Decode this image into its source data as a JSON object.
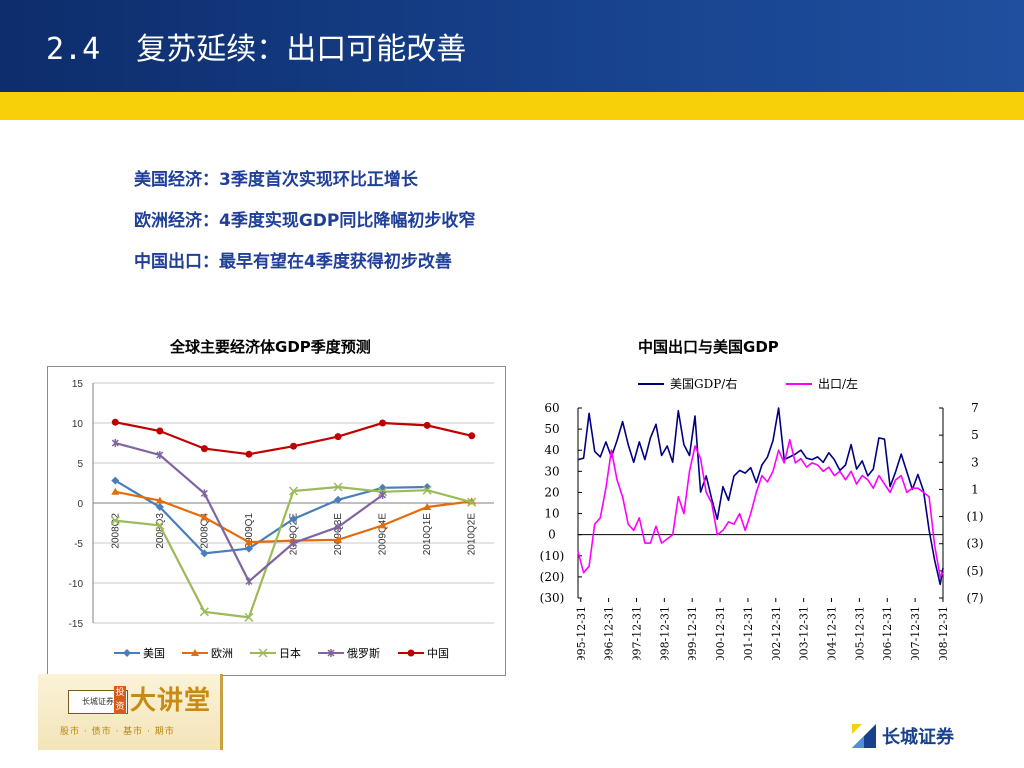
{
  "header": {
    "title": "2.4  复苏延续：出口可能改善"
  },
  "bullets": [
    "美国经济：3季度首次实现环比正增长",
    "欧洲经济：4季度实现GDP同比降幅初步收窄",
    "中国出口：最早有望在4季度获得初步改善"
  ],
  "footer": {
    "logo_mark": "长城证券",
    "logo_tag": "投资",
    "logo_big": "大讲堂",
    "logo_sub": "股市 · 债市 · 基市 · 期市",
    "brand_name": "长城证券"
  },
  "colors": {
    "header_dark": "#0d2d6b",
    "header_light": "#1f4f9e",
    "accent_yellow": "#f7d00a",
    "bullet_text": "#1f3f99"
  },
  "chart_data": [
    {
      "type": "line",
      "title": "全球主要经济体GDP季度预测",
      "categories": [
        "2008Q2",
        "2008Q3",
        "2008Q4",
        "2009Q1",
        "2009Q2E",
        "2009Q3E",
        "2009Q4E",
        "2010Q1E",
        "2010Q2E"
      ],
      "ylim": [
        -15,
        15
      ],
      "yticks": [
        15,
        10,
        5,
        0,
        -5,
        -10,
        -15
      ],
      "grid": true,
      "legend": "bottom",
      "series": [
        {
          "name": "美国",
          "color": "#4a7ebb",
          "marker": "diamond",
          "values": [
            2.8,
            -0.5,
            -6.3,
            -5.7,
            -2.0,
            0.4,
            1.9,
            2.0,
            null
          ]
        },
        {
          "name": "欧洲",
          "color": "#e46c0a",
          "marker": "triangle",
          "values": [
            1.4,
            0.3,
            -1.8,
            -4.9,
            -4.7,
            -4.6,
            -2.8,
            -0.5,
            0.2
          ]
        },
        {
          "name": "日本",
          "color": "#9bbb59",
          "marker": "cross",
          "values": [
            -2.2,
            -2.8,
            -13.6,
            -14.3,
            1.5,
            2.0,
            1.4,
            1.6,
            0.1
          ]
        },
        {
          "name": "俄罗斯",
          "color": "#8064a2",
          "marker": "x",
          "values": [
            7.5,
            6.0,
            1.2,
            -9.8,
            -5.0,
            -3.0,
            1.0,
            null,
            null
          ]
        },
        {
          "name": "中国",
          "color": "#c00000",
          "marker": "circle",
          "values": [
            10.1,
            9.0,
            6.8,
            6.1,
            7.1,
            8.3,
            10.0,
            9.7,
            8.4
          ]
        }
      ]
    },
    {
      "type": "line",
      "title": "中国出口与美国GDP",
      "x_labels": [
        "1995-12-31",
        "1996-12-31",
        "1997-12-31",
        "1998-12-31",
        "1999-12-31",
        "2000-12-31",
        "2001-12-31",
        "2002-12-31",
        "2003-12-31",
        "2004-12-31",
        "2005-12-31",
        "2006-12-31",
        "2007-12-31",
        "2008-12-31"
      ],
      "ylim_left": [
        -30,
        60
      ],
      "yticks_left": [
        "60",
        "50",
        "40",
        "30",
        "20",
        "10",
        "0",
        "(10)",
        "(20)",
        "(30)"
      ],
      "ylim_right": [
        -7,
        7
      ],
      "yticks_right": [
        "7",
        "5",
        "3",
        "1",
        "(1)",
        "(3)",
        "(5)",
        "(7)"
      ],
      "legend": "top",
      "series": [
        {
          "name": "美国GDP/右",
          "color": "#000080",
          "axis": "right",
          "x": [
            1995.9,
            1996.1,
            1996.3,
            1996.5,
            1996.7,
            1996.9,
            1997.1,
            1997.3,
            1997.5,
            1997.7,
            1997.9,
            1998.1,
            1998.3,
            1998.5,
            1998.7,
            1998.9,
            1999.1,
            1999.3,
            1999.5,
            1999.7,
            1999.9,
            2000.1,
            2000.3,
            2000.5,
            2000.7,
            2000.9,
            2001.1,
            2001.3,
            2001.5,
            2001.7,
            2001.9,
            2002.1,
            2002.3,
            2002.5,
            2002.7,
            2002.9,
            2003.1,
            2003.3,
            2003.5,
            2003.7,
            2003.9,
            2004.1,
            2004.3,
            2004.5,
            2004.7,
            2004.9,
            2005.1,
            2005.3,
            2005.5,
            2005.7,
            2005.9,
            2006.1,
            2006.3,
            2006.5,
            2006.7,
            2006.9,
            2007.1,
            2007.3,
            2007.5,
            2007.7,
            2007.9,
            2008.1,
            2008.3,
            2008.5,
            2008.7,
            2008.9,
            2009.0
          ],
          "values": [
            3.2,
            3.3,
            6.6,
            3.8,
            3.4,
            4.5,
            3.4,
            4.6,
            6.0,
            4.3,
            3.0,
            4.5,
            3.2,
            4.8,
            5.8,
            3.5,
            4.2,
            3.0,
            6.8,
            4.3,
            3.5,
            6.4,
            0.8,
            2.0,
            0.3,
            -1.2,
            1.2,
            0.2,
            2.0,
            2.4,
            2.2,
            2.6,
            1.5,
            2.8,
            3.4,
            4.6,
            7.0,
            3.2,
            3.4,
            3.6,
            3.9,
            3.3,
            3.2,
            3.4,
            3.0,
            3.7,
            3.2,
            2.4,
            2.8,
            4.3,
            2.5,
            3.1,
            2.0,
            2.5,
            4.8,
            4.7,
            1.2,
            2.3,
            3.6,
            2.3,
            1.0,
            2.1,
            0.9,
            -2.0,
            -4.2,
            -6.0,
            -4.8
          ]
        },
        {
          "name": "出口/左",
          "color": "#ff00ff",
          "axis": "left",
          "x": [
            1995.9,
            1996.1,
            1996.3,
            1996.5,
            1996.7,
            1996.9,
            1997.1,
            1997.3,
            1997.5,
            1997.7,
            1997.9,
            1998.1,
            1998.3,
            1998.5,
            1998.7,
            1998.9,
            1999.1,
            1999.3,
            1999.5,
            1999.7,
            1999.9,
            2000.1,
            2000.3,
            2000.5,
            2000.7,
            2000.9,
            2001.1,
            2001.3,
            2001.5,
            2001.7,
            2001.9,
            2002.1,
            2002.3,
            2002.5,
            2002.7,
            2002.9,
            2003.1,
            2003.3,
            2003.5,
            2003.7,
            2003.9,
            2004.1,
            2004.3,
            2004.5,
            2004.7,
            2004.9,
            2005.1,
            2005.3,
            2005.5,
            2005.7,
            2005.9,
            2006.1,
            2006.3,
            2006.5,
            2006.7,
            2006.9,
            2007.1,
            2007.3,
            2007.5,
            2007.7,
            2007.9,
            2008.1,
            2008.3,
            2008.5,
            2008.7,
            2008.9,
            2009.0
          ],
          "values": [
            -8,
            -18,
            -15,
            5,
            8,
            22,
            40,
            26,
            18,
            5,
            2,
            8,
            -4,
            -4,
            4,
            -4,
            -2,
            0,
            18,
            10,
            30,
            42,
            36,
            20,
            15,
            0,
            2,
            6,
            5,
            10,
            2,
            10,
            20,
            28,
            25,
            30,
            40,
            34,
            45,
            34,
            36,
            32,
            34,
            33,
            30,
            32,
            28,
            30,
            26,
            30,
            24,
            28,
            26,
            22,
            28,
            24,
            20,
            26,
            28,
            20,
            22,
            22,
            20,
            18,
            -5,
            -20,
            -18
          ]
        }
      ]
    }
  ]
}
